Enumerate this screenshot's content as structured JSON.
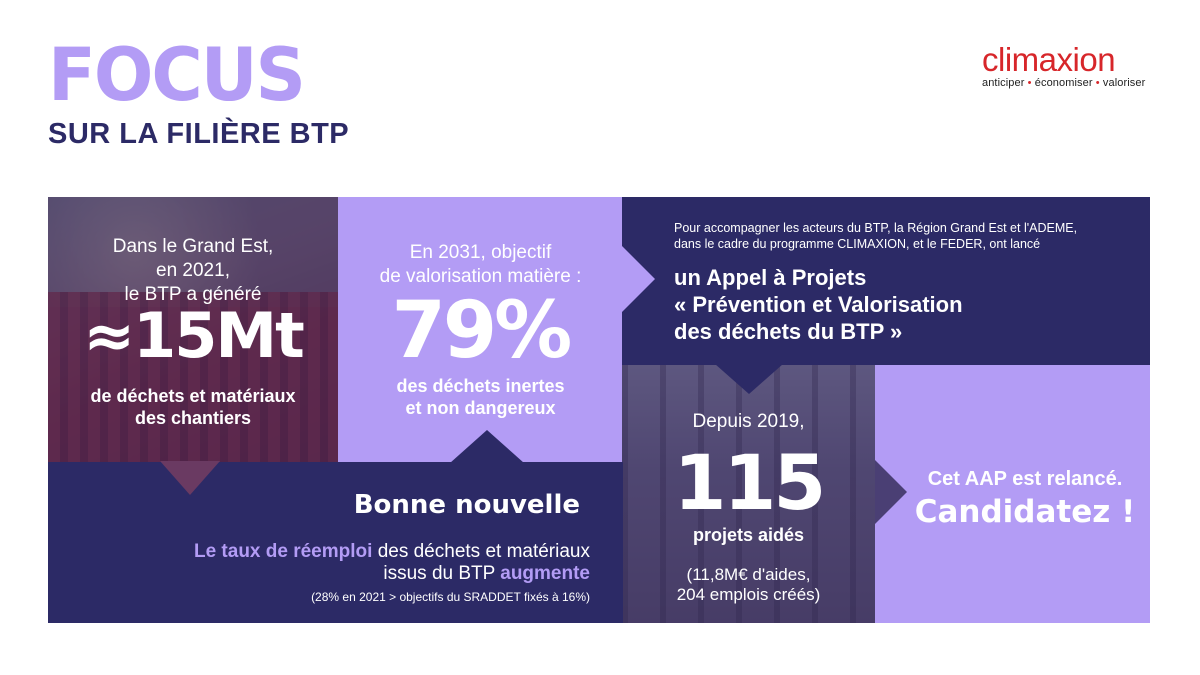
{
  "header": {
    "focus": "FOCUS",
    "subtitle": "SUR LA FILIÈRE BTP"
  },
  "logo": {
    "name": "climaxion",
    "tagline_1": "anticiper",
    "tagline_sep": "•",
    "tagline_2": "économiser",
    "tagline_3": "valoriser"
  },
  "waste_panel": {
    "intro_1": "Dans le Grand Est,",
    "intro_2": "en 2021,",
    "intro_3": "le BTP a généré",
    "value": "≈15Mt",
    "desc_1": "de déchets et matériaux",
    "desc_2": "des chantiers"
  },
  "target_panel": {
    "intro_1": "En 2031, objectif",
    "intro_2": "de valorisation matière :",
    "value": "79%",
    "desc_1": "des déchets inertes",
    "desc_2": "et non dangereux"
  },
  "call_panel": {
    "small_1": "Pour accompagner les acteurs du BTP, la Région Grand Est et l'ADEME,",
    "small_2": "dans le cadre du programme CLIMAXION, et le FEDER, ont lancé",
    "title_1": "un Appel à Projets",
    "title_2": "« Prévention et Valorisation",
    "title_3": "des déchets du BTP »"
  },
  "projects_panel": {
    "intro": "Depuis 2019,",
    "value": "115",
    "label": "projets aidés",
    "note_1": "(11,8M€ d'aides,",
    "note_2": "204 emplois créés)"
  },
  "good_news": {
    "title": "Bonne nouvelle",
    "hl_1": "Le taux de réemploi",
    "text_1": " des déchets et matériaux",
    "text_2": "issus du BTP ",
    "hl_2": "augmente",
    "note": "(28% en 2021 > objectifs du SRADDET fixés à 16%)"
  },
  "cta_panel": {
    "line_1": "Cet AAP est relancé.",
    "line_2": "Candidatez !"
  },
  "colors": {
    "lavender": "#b39cf5",
    "navy": "#2c2a66",
    "logo_red": "#d7262a"
  }
}
